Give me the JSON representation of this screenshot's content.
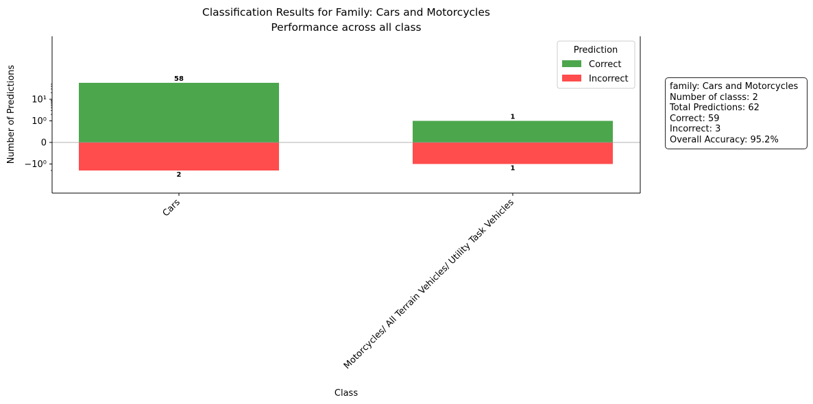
{
  "chart_data": {
    "type": "bar",
    "title": "Classification Results for Family: Cars and Motorcycles",
    "subtitle": "Performance across all class",
    "xlabel": "Class",
    "ylabel": "Number of Predictions",
    "y_scale": "symlog",
    "y_ticks": [
      "10¹",
      "10⁰",
      "0",
      "−10⁰"
    ],
    "categories": [
      "Cars",
      "Motorcycles/ All Terrain Vehicles/ Utility Task Vehicles"
    ],
    "series": [
      {
        "name": "Correct",
        "color": "#4ca64c",
        "values": [
          58,
          1
        ],
        "labels": [
          "58",
          "1"
        ]
      },
      {
        "name": "Incorrect",
        "color": "#ff4c4c",
        "values": [
          2,
          1
        ],
        "labels": [
          "2",
          "1"
        ]
      }
    ],
    "legend": {
      "title": "Prediction",
      "position": "top-right"
    },
    "grid": false
  },
  "stats": {
    "family": "family: Cars and Motorcycles",
    "num_classes": "Number of classs: 2",
    "total": "Total Predictions: 62",
    "correct": "Correct: 59",
    "incorrect": "Incorrect: 3",
    "accuracy": "Overall Accuracy: 95.2%"
  }
}
